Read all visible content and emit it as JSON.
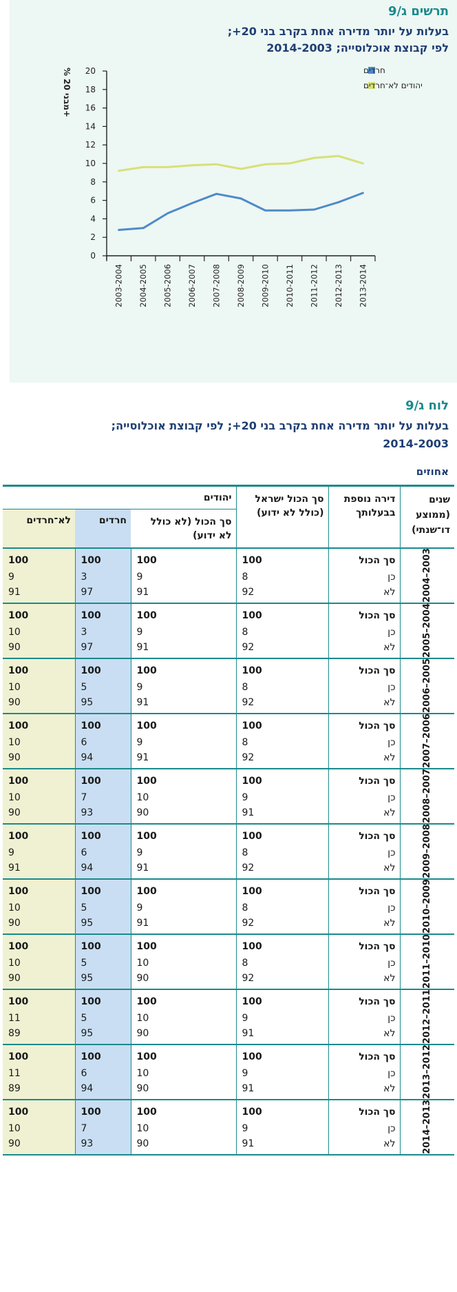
{
  "figure": {
    "label": "תרשים ג/9",
    "title_line1": "בעלות על יותר מדירה אחת בקרב בני 20+;",
    "title_line2": "לפי קבוצת אוכלוסייה; 2014-2003"
  },
  "chart_data": {
    "type": "line",
    "ylabel": "% מבני 20+",
    "ylim": [
      0,
      20
    ],
    "yticks": [
      "0",
      "2",
      "4",
      "6",
      "8",
      "10",
      "12",
      "14",
      "16",
      "18",
      "20"
    ],
    "categories": [
      "2003-2004",
      "2004-2005",
      "2005-2006",
      "2006-2007",
      "2007-2008",
      "2008-2009",
      "2009-2010",
      "2010-2011",
      "2011-2012",
      "2012-2013",
      "2013-2014"
    ],
    "legend_position": "top-right",
    "series": [
      {
        "name": "חרדים",
        "color": "#4e8ac8",
        "values": [
          2.8,
          3.0,
          4.6,
          5.7,
          6.7,
          6.2,
          4.9,
          4.9,
          5.0,
          5.8,
          6.8
        ]
      },
      {
        "name": "יהודים לא־חרדים",
        "color": "#d6e176",
        "values": [
          9.2,
          9.6,
          9.6,
          9.8,
          9.9,
          9.4,
          9.9,
          10.0,
          10.6,
          10.8,
          10.0
        ]
      }
    ]
  },
  "table": {
    "label": "לוח ג/9",
    "title_line1": "בעלות על יותר מדירה אחת בקרב בני 20+; לפי קבוצת אוכלוסייה;",
    "title_line2": "2014-2003",
    "unit": "אחוזים",
    "headers": {
      "years": "שנים (ממוצע דו־שנתי)",
      "owns": "דירה נוספת בבעלותך",
      "total_israel": "סך הכול ישראל (כולל לא ידוע)",
      "jews": "יהודים",
      "jews_total": "סך הכול (לא כולל לא ידוע)",
      "haredim": "חרדים",
      "non_haredim": "לא־חרדים"
    },
    "row_labels": [
      "סך הכול",
      "כן",
      "לא"
    ],
    "groups": [
      {
        "years": "2003–2004",
        "israel": [
          "100",
          "8",
          "92"
        ],
        "jews": [
          "100",
          "9",
          "91"
        ],
        "haredim": [
          "100",
          "3",
          "97"
        ],
        "non_haredim": [
          "100",
          "9",
          "91"
        ]
      },
      {
        "years": "2004–2005",
        "israel": [
          "100",
          "8",
          "92"
        ],
        "jews": [
          "100",
          "9",
          "91"
        ],
        "haredim": [
          "100",
          "3",
          "97"
        ],
        "non_haredim": [
          "100",
          "10",
          "90"
        ]
      },
      {
        "years": "2005–2006",
        "israel": [
          "100",
          "8",
          "92"
        ],
        "jews": [
          "100",
          "9",
          "91"
        ],
        "haredim": [
          "100",
          "5",
          "95"
        ],
        "non_haredim": [
          "100",
          "10",
          "90"
        ]
      },
      {
        "years": "2006–2007",
        "israel": [
          "100",
          "8",
          "92"
        ],
        "jews": [
          "100",
          "9",
          "91"
        ],
        "haredim": [
          "100",
          "6",
          "94"
        ],
        "non_haredim": [
          "100",
          "10",
          "90"
        ]
      },
      {
        "years": "2007–2008",
        "israel": [
          "100",
          "9",
          "91"
        ],
        "jews": [
          "100",
          "10",
          "90"
        ],
        "haredim": [
          "100",
          "7",
          "93"
        ],
        "non_haredim": [
          "100",
          "10",
          "90"
        ]
      },
      {
        "years": "2008–2009",
        "israel": [
          "100",
          "8",
          "92"
        ],
        "jews": [
          "100",
          "9",
          "91"
        ],
        "haredim": [
          "100",
          "6",
          "94"
        ],
        "non_haredim": [
          "100",
          "9",
          "91"
        ]
      },
      {
        "years": "2009–2010",
        "israel": [
          "100",
          "8",
          "92"
        ],
        "jews": [
          "100",
          "9",
          "91"
        ],
        "haredim": [
          "100",
          "5",
          "95"
        ],
        "non_haredim": [
          "100",
          "10",
          "90"
        ]
      },
      {
        "years": "2010–2011",
        "israel": [
          "100",
          "8",
          "92"
        ],
        "jews": [
          "100",
          "10",
          "90"
        ],
        "haredim": [
          "100",
          "5",
          "95"
        ],
        "non_haredim": [
          "100",
          "10",
          "90"
        ]
      },
      {
        "years": "2011–2012",
        "israel": [
          "100",
          "9",
          "91"
        ],
        "jews": [
          "100",
          "10",
          "90"
        ],
        "haredim": [
          "100",
          "5",
          "95"
        ],
        "non_haredim": [
          "100",
          "11",
          "89"
        ]
      },
      {
        "years": "2012–2013",
        "israel": [
          "100",
          "9",
          "91"
        ],
        "jews": [
          "100",
          "10",
          "90"
        ],
        "haredim": [
          "100",
          "6",
          "94"
        ],
        "non_haredim": [
          "100",
          "11",
          "89"
        ]
      },
      {
        "years": "2013–2014",
        "israel": [
          "100",
          "9",
          "91"
        ],
        "jews": [
          "100",
          "10",
          "90"
        ],
        "haredim": [
          "100",
          "7",
          "93"
        ],
        "non_haredim": [
          "100",
          "10",
          "90"
        ]
      }
    ]
  },
  "colors": {
    "teal": "#1a8a8c",
    "navy": "#1f3f72",
    "haredim_fill": "#c9def2",
    "non_haredim_fill": "#eff1d2",
    "chart_bg": "#edf7f4"
  }
}
